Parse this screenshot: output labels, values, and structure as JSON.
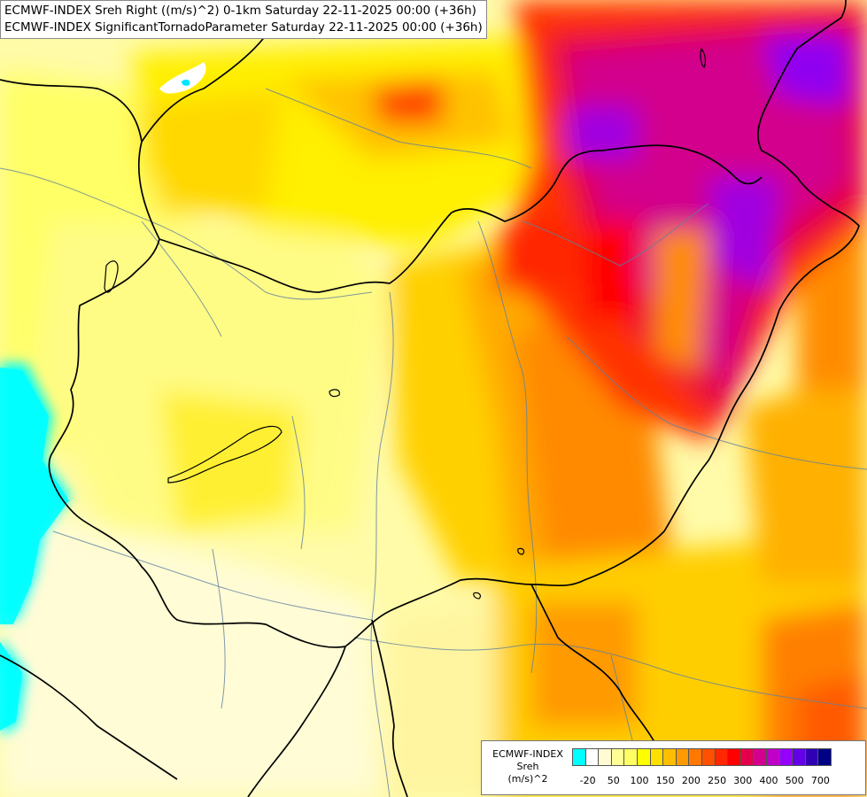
{
  "header": {
    "line1": "ECMWF-INDEX Sreh Right ((m/s)^2) 0-1km Saturday 22-11-2025 00:00 (+36h)",
    "line2": "ECMWF-INDEX SignificantTornadoParameter Saturday 22-11-2025 00:00 (+36h)"
  },
  "legend": {
    "title_line1": "ECMWF-INDEX",
    "title_line2": "Sreh",
    "title_line3": "(m/s)^2",
    "colors": [
      "#00ffff",
      "#ffffff",
      "#fffbd2",
      "#ffff96",
      "#ffff64",
      "#ffff00",
      "#ffdf00",
      "#ffbe00",
      "#ff9b00",
      "#ff7800",
      "#ff5000",
      "#ff2800",
      "#ff0000",
      "#e6004b",
      "#d2008c",
      "#be00c8",
      "#9600ff",
      "#6400e6",
      "#3200b4",
      "#000087"
    ],
    "ticks": [
      "-20",
      "50",
      "100",
      "150",
      "200",
      "250",
      "300",
      "400",
      "500",
      "700"
    ]
  }
}
